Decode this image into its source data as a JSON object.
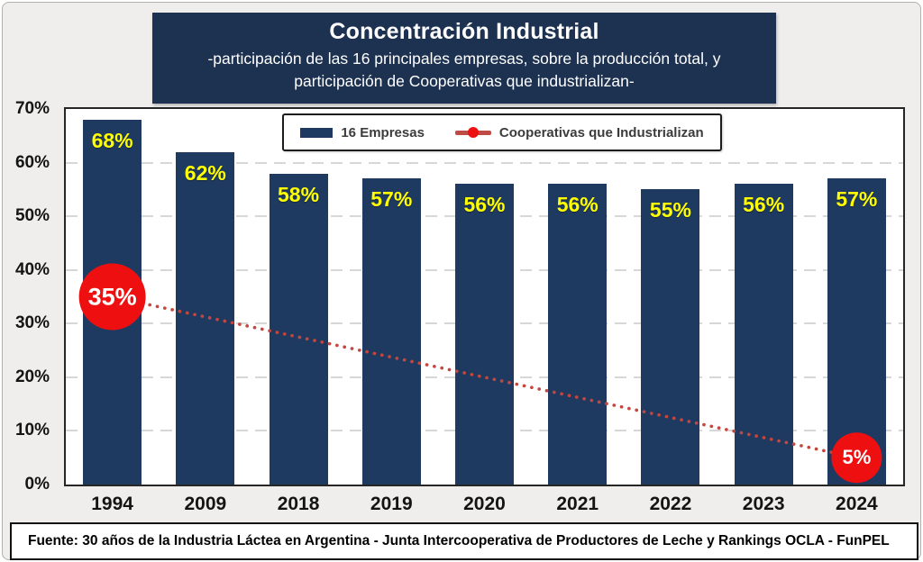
{
  "header": {
    "title": "Concentración Industrial",
    "subtitle": "-participación de las 16 principales empresas, sobre la producción total, y participación de Cooperativas que industrializan-"
  },
  "footer": {
    "source": "Fuente: 30 años de la Industria Láctea en Argentina - Junta Intercooperativa de Productores de Leche y Rankings OCLA - FunPEL"
  },
  "colors": {
    "bar": "#1f3a60",
    "bar_label": "#ffff00",
    "title_bg": "#1d3150",
    "marker_red": "#ee1010",
    "dotted_line": "#c4463e",
    "legend_line": "#bf4b47",
    "gridline": "#d7d7d7",
    "page_bg": "#efeeec"
  },
  "chart_data": {
    "type": "bar",
    "categories": [
      "1994",
      "2009",
      "2018",
      "2019",
      "2020",
      "2021",
      "2022",
      "2023",
      "2024"
    ],
    "series": [
      {
        "name": "16 Empresas",
        "type": "bar",
        "color": "#1f3a60",
        "values": [
          68,
          62,
          58,
          57,
          56,
          56,
          55,
          56,
          57
        ]
      },
      {
        "name": "Cooperativas que Industrializan",
        "type": "line",
        "line_style": "dotted",
        "color": "#c4463e",
        "marker_color": "#ee1010",
        "points": [
          {
            "category": "1994",
            "value": 35
          },
          {
            "category": "2024",
            "value": 5
          }
        ]
      }
    ],
    "value_suffix": "%",
    "ylim": [
      0,
      70
    ],
    "ytick_step": 10,
    "ytick_labels": [
      "0%",
      "10%",
      "20%",
      "30%",
      "40%",
      "50%",
      "60%",
      "70%"
    ],
    "grid": "horizontal-dashed",
    "legend_position": "top-center"
  }
}
